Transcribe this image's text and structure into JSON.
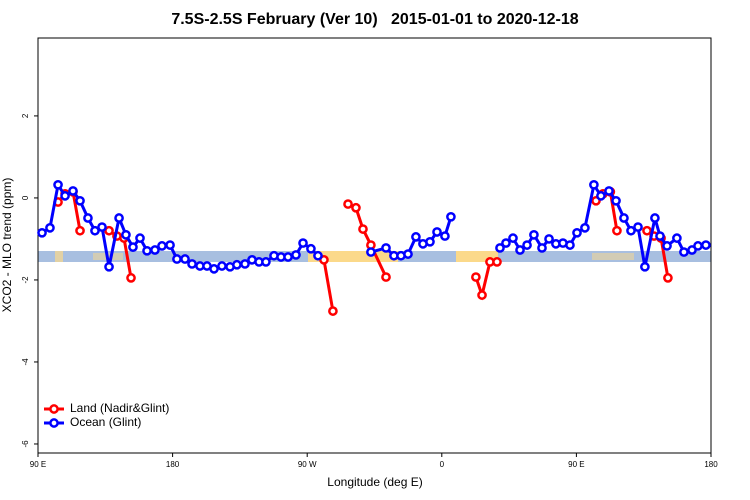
{
  "chart_data": {
    "type": "line",
    "title": "7.5S-2.5S February (Ver 10)   2015-01-01 to 2020-12-18",
    "x_label": "Longitude (deg E)",
    "y_label": "XCO2 - MLO trend (ppm)",
    "xlim": [
      90,
      540
    ],
    "xticks": [
      {
        "value": 90,
        "label": "90 E"
      },
      180,
      {
        "value": 270,
        "label": "90 W"
      },
      {
        "value": 360,
        "label": "0"
      },
      {
        "value": 450,
        "label": "90 E"
      },
      {
        "value": 540,
        "label": "180"
      }
    ],
    "ylim": [
      -6.22,
      3.9
    ],
    "yticks": [
      -6,
      -4,
      -2,
      0,
      2
    ],
    "legend": "bottom-left",
    "series": [
      {
        "name": "Land (Nadir&Glint)",
        "color": "#ff0000",
        "x": [
          103.4,
          108.1,
          113.4,
          118.1,
          null,
          137.5,
          142.8,
          147.5,
          152.2,
          null,
          281.2,
          287.2,
          null,
          297.3,
          302.6,
          307.3,
          312.6,
          322.7,
          null,
          382.8,
          386.9,
          392.2,
          396.9,
          null,
          463.1,
          467.8,
          472.7,
          477.1,
          null,
          497.2,
          501.9,
          506.6,
          511.2
        ],
        "values": [
          -0.1,
          0.1,
          0.15,
          -0.8,
          null,
          -0.8,
          -0.93,
          -0.98,
          -1.95,
          null,
          -1.51,
          -2.76,
          null,
          -0.15,
          -0.24,
          -0.76,
          -1.15,
          -1.93,
          null,
          -1.93,
          -2.37,
          -1.56,
          -1.56,
          null,
          -0.07,
          0.1,
          0.15,
          -0.8,
          null,
          -0.8,
          -0.93,
          -0.98,
          -1.95
        ]
      },
      {
        "name": "Ocean (Glint)",
        "color": "#0000ff",
        "x": [
          92.7,
          98.0,
          103.4,
          108.1,
          113.4,
          118.1,
          123.4,
          128.1,
          132.8,
          137.5,
          144.2,
          148.8,
          153.5,
          158.2,
          162.9,
          168.2,
          172.9,
          178.3,
          182.9,
          188.3,
          193.0,
          198.3,
          203.0,
          207.7,
          213.0,
          218.4,
          223.0,
          228.4,
          233.1,
          237.8,
          242.4,
          247.8,
          252.5,
          257.2,
          262.5,
          267.2,
          272.5,
          277.2,
          null,
          312.6,
          322.7,
          328.0,
          332.7,
          337.4,
          342.7,
          347.4,
          352.1,
          356.8,
          362.1,
          366.1,
          null,
          398.9,
          402.9,
          407.6,
          412.3,
          417.0,
          421.6,
          427.0,
          431.7,
          436.3,
          441.0,
          445.7,
          450.4,
          455.7,
          461.7,
          466.4,
          471.8,
          476.5,
          481.8,
          486.5,
          491.2,
          495.8,
          502.5,
          505.9,
          510.6,
          517.2,
          521.9,
          527.3,
          531.3,
          536.6
        ],
        "values": [
          -0.85,
          -0.73,
          0.32,
          0.05,
          0.17,
          -0.07,
          -0.49,
          -0.8,
          -0.71,
          -1.68,
          -0.49,
          -0.9,
          -1.2,
          -0.98,
          -1.29,
          -1.27,
          -1.17,
          -1.15,
          -1.49,
          -1.49,
          -1.61,
          -1.66,
          -1.66,
          -1.73,
          -1.66,
          -1.68,
          -1.63,
          -1.61,
          -1.51,
          -1.56,
          -1.56,
          -1.41,
          -1.44,
          -1.44,
          -1.39,
          -1.1,
          -1.24,
          -1.41,
          null,
          -1.32,
          -1.22,
          -1.41,
          -1.41,
          -1.37,
          -0.95,
          -1.12,
          -1.07,
          -0.83,
          -0.93,
          -0.46,
          null,
          -1.22,
          -1.1,
          -0.98,
          -1.27,
          -1.15,
          -0.9,
          -1.22,
          -1.0,
          -1.12,
          -1.1,
          -1.15,
          -0.85,
          -0.73,
          0.32,
          0.05,
          0.17,
          -0.07,
          -0.49,
          -0.8,
          -0.71,
          -1.68,
          -0.49,
          -0.93,
          -1.17,
          -0.98,
          -1.32,
          -1.27,
          -1.17,
          -1.15
        ]
      }
    ]
  }
}
